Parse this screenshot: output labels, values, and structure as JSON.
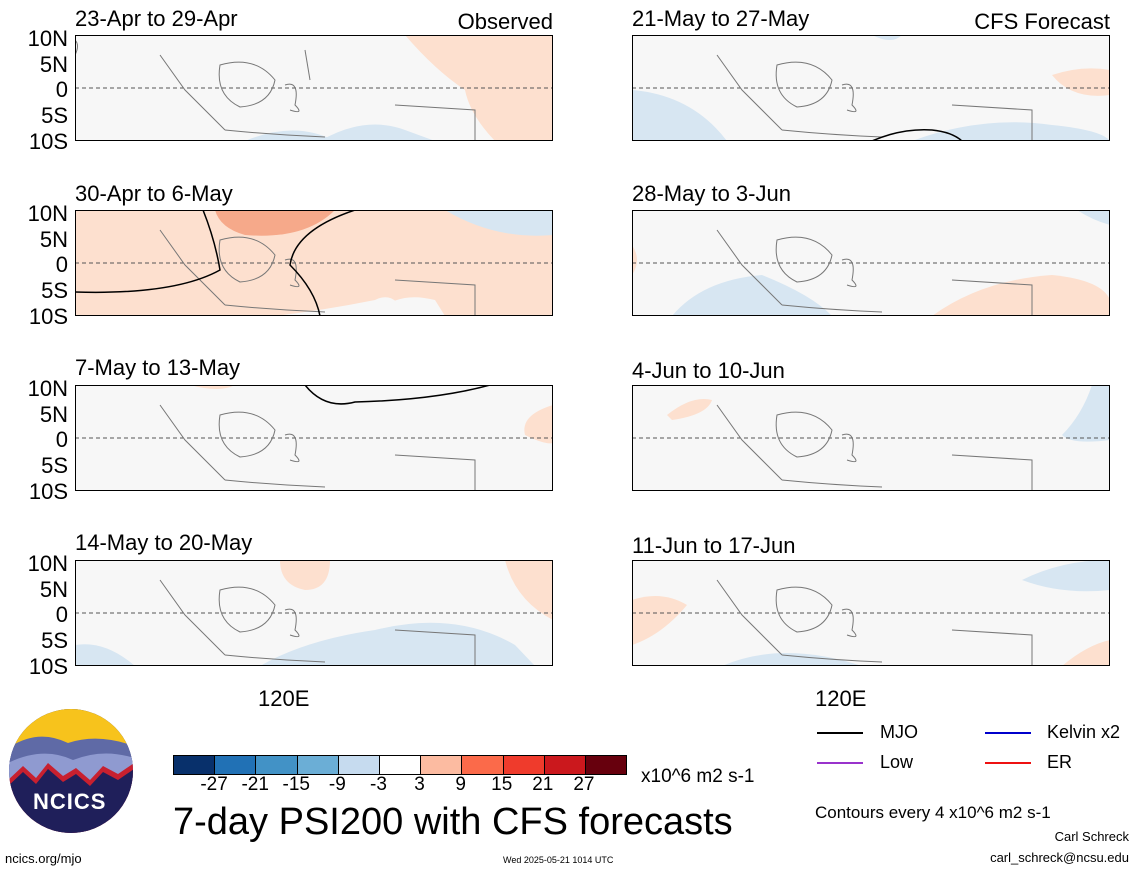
{
  "title": "7-day PSI200 with CFS forecasts",
  "left_column_tag": "Observed",
  "right_column_tag": "CFS Forecast",
  "lat_labels": [
    "10N",
    "5N",
    "0",
    "5S",
    "10S"
  ],
  "lon_label": "120E",
  "panels_left": [
    {
      "title": "23-Apr to 29-Apr"
    },
    {
      "title": "30-Apr to 6-May"
    },
    {
      "title": "7-May to 13-May"
    },
    {
      "title": "14-May to 20-May"
    }
  ],
  "panels_right": [
    {
      "title": "21-May to 27-May"
    },
    {
      "title": "28-May to 3-Jun"
    },
    {
      "title": "4-Jun to 10-Jun"
    },
    {
      "title": "11-Jun to 17-Jun"
    }
  ],
  "colorbar": {
    "labels": [
      "-27",
      "-21",
      "-15",
      "-9",
      "-3",
      "3",
      "9",
      "15",
      "21",
      "27"
    ],
    "colors": [
      "#08306b",
      "#2171b5",
      "#4292c6",
      "#6baed6",
      "#c6dbef",
      "#ffffff",
      "#fcbba1",
      "#fb6a4a",
      "#ef3b2c",
      "#cb181d",
      "#67000d"
    ],
    "units": "x10^6 m2 s-1"
  },
  "legend": {
    "items": [
      {
        "label": "MJO",
        "color": "#000000"
      },
      {
        "label": "Kelvin x2",
        "color": "#0000cc"
      },
      {
        "label": "Low",
        "color": "#9933cc"
      },
      {
        "label": "ER",
        "color": "#ee1111"
      }
    ],
    "contours_note": "Contours every 4 x10^6 m2 s-1"
  },
  "author": "Carl Schreck",
  "email": "carl_schreck@ncsu.edu",
  "url": "ncics.org/mjo",
  "timestamp": "Wed 2025-05-21 1014 UTC",
  "logo_text": "NCICS"
}
